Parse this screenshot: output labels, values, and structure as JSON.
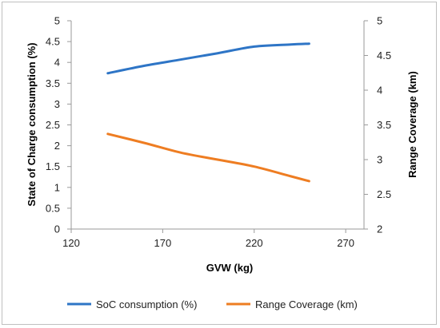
{
  "chart_data": {
    "type": "line",
    "title": "",
    "xlabel": "GVW (kg)",
    "ylabel_left": "State of Charge consumption (%)",
    "ylabel_right": "Range Coverage (km)",
    "xlim": [
      120,
      280
    ],
    "x_ticks": [
      120,
      170,
      220,
      270
    ],
    "ylim_left": [
      0,
      5
    ],
    "y_ticks_left": [
      0,
      0.5,
      1,
      1.5,
      2,
      2.5,
      3,
      3.5,
      4,
      4.5,
      5
    ],
    "ylim_right": [
      2,
      5
    ],
    "y_ticks_right": [
      2,
      2.5,
      3,
      3.5,
      4,
      4.5,
      5
    ],
    "grid": false,
    "legend_position": "bottom",
    "series": [
      {
        "name": "SoC consumption (%)",
        "axis": "left",
        "color": "#2e75c6",
        "x": [
          140,
          160,
          180,
          200,
          220,
          240,
          250
        ],
        "y": [
          3.74,
          3.92,
          4.07,
          4.22,
          4.38,
          4.43,
          4.45
        ]
      },
      {
        "name": "Range Coverage (km)",
        "axis": "right",
        "color": "#ee7d22",
        "x": [
          140,
          160,
          180,
          200,
          220,
          240,
          250
        ],
        "y": [
          3.37,
          3.24,
          3.1,
          3.0,
          2.9,
          2.76,
          2.69
        ]
      }
    ]
  }
}
